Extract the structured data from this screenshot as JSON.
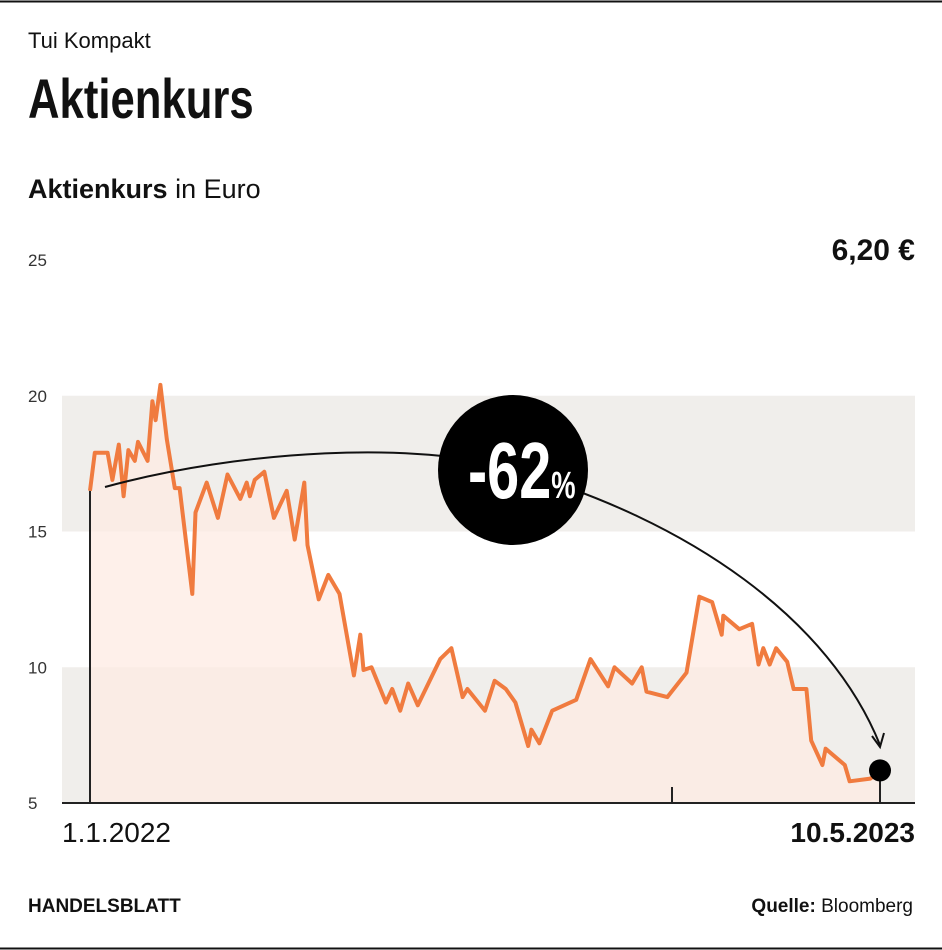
{
  "kicker": "Tui Kompakt",
  "chart_data": {
    "type": "line",
    "title": "Aktienkurs",
    "subtitle_bold": "Aktienkurs",
    "subtitle": "in Euro",
    "x": [
      "1.1.2022",
      "4.1.2022",
      "12.1.2022",
      "15.1.2022",
      "19.1.2022",
      "22.1.2022",
      "25.1.2022",
      "29.1.2022",
      "31.1.2022",
      "6.2.2022",
      "9.2.2022",
      "11.2.2022",
      "14.2.2022",
      "18.2.2022",
      "23.2.2022",
      "26.2.2022",
      "6.3.2022",
      "8.3.2022",
      "15.3.2022",
      "22.3.2022",
      "28.3.2022",
      "5.4.2022",
      "9.4.2022",
      "11.4.2022",
      "14.4.2022",
      "20.4.2022",
      "26.4.2022",
      "4.5.2022",
      "9.5.2022",
      "15.5.2022",
      "17.5.2022",
      "24.5.2022",
      "30.5.2022",
      "6.6.2022",
      "15.6.2022",
      "19.6.2022",
      "21.6.2022",
      "26.6.2022",
      "5.7.2022",
      "9.7.2022",
      "14.7.2022",
      "19.7.2022",
      "25.7.2022",
      "8.8.2022",
      "15.8.2022",
      "22.8.2022",
      "25.8.2022",
      "5.9.2022",
      "11.9.2022",
      "18.9.2022",
      "24.9.2022",
      "2.10.2022",
      "4.10.2022",
      "9.10.2022",
      "17.10.2022",
      "1.11.2022",
      "10.11.2022",
      "21.11.2022",
      "25.11.2022",
      "6.12.2022",
      "12.12.2022",
      "15.12.2022",
      "28.12.2022",
      "9.1.2023",
      "17.1.2023",
      "25.1.2023",
      "31.1.2023",
      "1.2.2023",
      "11.2.2023",
      "19.2.2023",
      "23.2.2023",
      "26.2.2023",
      "2.3.2023",
      "6.3.2023",
      "13.3.2023",
      "17.3.2023",
      "25.3.2023",
      "28.3.2023",
      "4.4.2023",
      "6.4.2023",
      "18.4.2023",
      "21.4.2023",
      "4.5.2023",
      "10.5.2023"
    ],
    "series": [
      {
        "name": "Aktienkurs",
        "color": "#f07b3f",
        "values": [
          16.5,
          17.9,
          17.9,
          16.9,
          18.2,
          16.3,
          18.0,
          17.6,
          18.3,
          17.6,
          19.8,
          19.1,
          20.4,
          18.4,
          16.6,
          16.6,
          12.7,
          15.7,
          16.8,
          15.5,
          17.1,
          16.2,
          16.8,
          16.3,
          16.9,
          17.2,
          15.5,
          16.5,
          14.7,
          16.8,
          14.5,
          12.5,
          13.4,
          12.7,
          9.7,
          11.2,
          9.9,
          10.0,
          8.7,
          9.2,
          8.4,
          9.4,
          8.6,
          10.3,
          10.7,
          8.9,
          9.2,
          8.4,
          9.5,
          9.2,
          8.7,
          7.1,
          7.7,
          7.2,
          8.4,
          8.8,
          10.3,
          9.3,
          10.0,
          9.4,
          10.0,
          9.1,
          8.9,
          9.8,
          12.6,
          12.4,
          11.2,
          11.9,
          11.4,
          11.6,
          10.1,
          10.7,
          10.1,
          10.7,
          10.2,
          9.2,
          9.2,
          7.3,
          6.4,
          7.0,
          6.4,
          5.8,
          5.9,
          6.2
        ]
      }
    ],
    "area_color": "#fdebe3",
    "xlim": [
      "1.1.2022",
      "10.5.2023"
    ],
    "xticks": [
      "1.1.2022",
      "10.5.2023"
    ],
    "ylim": [
      5,
      25
    ],
    "yticks": [
      5,
      10,
      15,
      20,
      25
    ],
    "band_color": "#f0eeeb",
    "end_label": "6,20 €",
    "annotation": "-62",
    "annotation_unit": "%"
  },
  "footer": {
    "brand": "HANDELSBLATT",
    "source_label": "Quelle:",
    "source": "Bloomberg"
  }
}
